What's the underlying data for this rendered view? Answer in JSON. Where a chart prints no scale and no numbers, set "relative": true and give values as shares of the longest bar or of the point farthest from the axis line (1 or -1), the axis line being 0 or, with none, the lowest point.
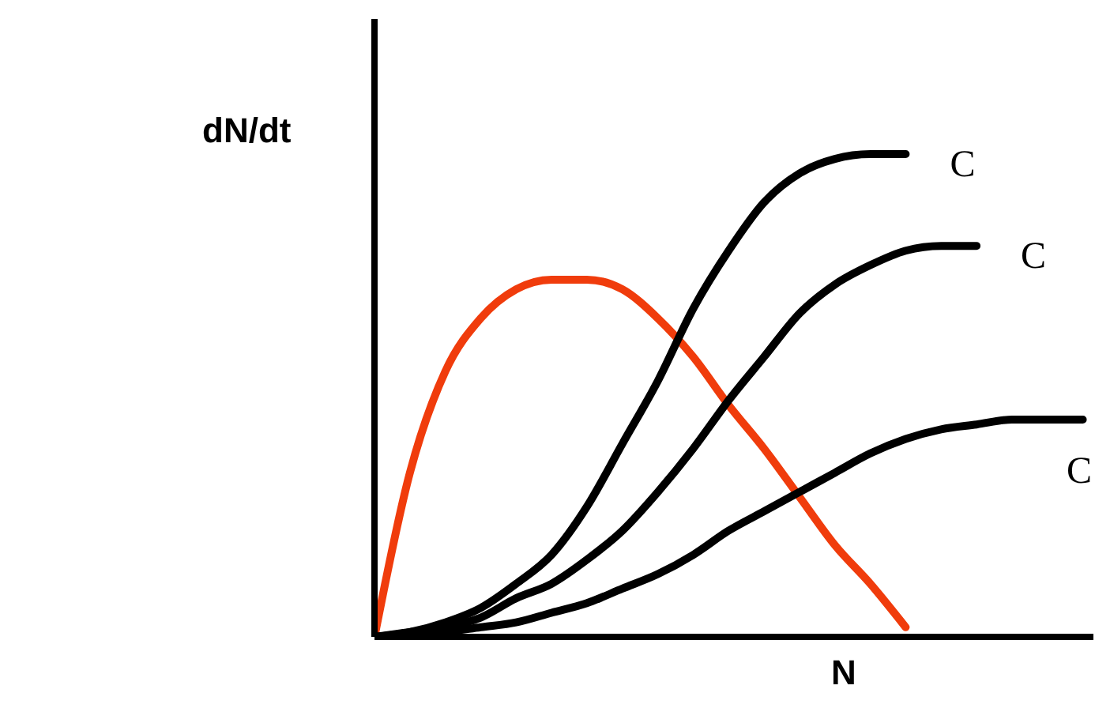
{
  "chart_data": {
    "type": "line",
    "relative": true,
    "xlabel": "N",
    "ylabel": "dN/dt",
    "categories": [
      null,
      null,
      null,
      null,
      null,
      null,
      null,
      null,
      null,
      null,
      null,
      null,
      null,
      null,
      null,
      null,
      null,
      null,
      null,
      null,
      null
    ],
    "series": [
      {
        "color": "#f03c0c",
        "values": [
          0,
          0.34,
          0.55,
          0.66,
          0.72,
          0.74,
          0.74,
          0.72,
          0.66,
          0.58,
          0.48,
          0.39,
          0.29,
          0.19,
          0.11,
          0.02,
          null,
          null,
          null,
          null,
          null
        ]
      },
      {
        "name": "C",
        "color": "#000000",
        "values": [
          0,
          0.01,
          0.03,
          0.06,
          0.11,
          0.17,
          0.27,
          0.4,
          0.53,
          0.68,
          0.8,
          0.9,
          0.96,
          0.99,
          1,
          1,
          null,
          null,
          null,
          null,
          null
        ]
      },
      {
        "name": "C",
        "color": "#000000",
        "values": [
          0,
          0.01,
          0.02,
          0.04,
          0.08,
          0.11,
          0.16,
          0.22,
          0.3,
          0.39,
          0.49,
          0.58,
          0.67,
          0.73,
          0.77,
          0.8,
          0.81,
          0.81,
          null,
          null,
          null
        ]
      },
      {
        "name": "C",
        "color": "#000000",
        "values": [
          0,
          0.003,
          0.01,
          0.02,
          0.03,
          0.05,
          0.07,
          0.1,
          0.13,
          0.17,
          0.22,
          0.26,
          0.3,
          0.34,
          0.38,
          0.41,
          0.43,
          0.44,
          0.45,
          0.45,
          0.45
        ]
      }
    ]
  }
}
